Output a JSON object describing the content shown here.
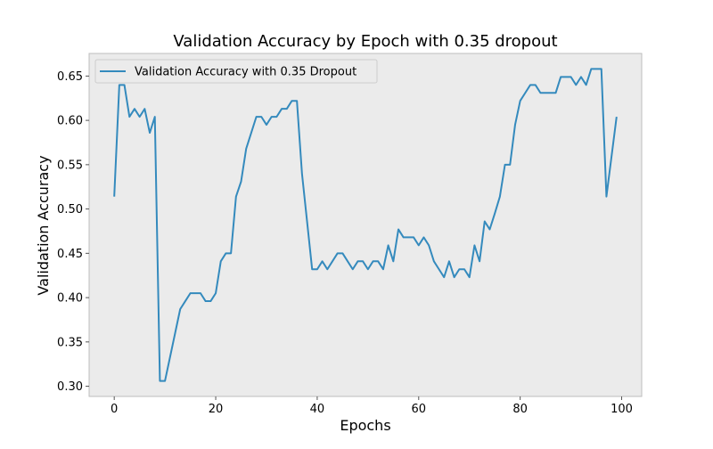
{
  "chart_data": {
    "type": "line",
    "title": "Validation Accuracy by Epoch with 0.35 dropout",
    "xlabel": "Epochs",
    "ylabel": "Validation Accuracy",
    "xlim": [
      -4.95,
      103.95
    ],
    "ylim": [
      0.2885,
      0.6755
    ],
    "xticks": [
      0,
      20,
      40,
      60,
      80,
      100
    ],
    "yticks": [
      0.3,
      0.35,
      0.4,
      0.45,
      0.5,
      0.55,
      0.6,
      0.65
    ],
    "grid": false,
    "legend_position": "top-left",
    "colors": {
      "background": "#ebebeb",
      "line": "#348abd"
    },
    "series": [
      {
        "name": "Validation Accuracy with 0.35 Dropout",
        "x": [
          0,
          1,
          2,
          3,
          4,
          5,
          6,
          7,
          8,
          9,
          10,
          11,
          12,
          13,
          14,
          15,
          16,
          17,
          18,
          19,
          20,
          21,
          22,
          23,
          24,
          25,
          26,
          27,
          28,
          29,
          30,
          31,
          32,
          33,
          34,
          35,
          36,
          37,
          38,
          39,
          40,
          41,
          42,
          43,
          44,
          45,
          46,
          47,
          48,
          49,
          50,
          51,
          52,
          53,
          54,
          55,
          56,
          57,
          58,
          59,
          60,
          61,
          62,
          63,
          64,
          65,
          66,
          67,
          68,
          69,
          70,
          71,
          72,
          73,
          74,
          75,
          76,
          77,
          78,
          79,
          80,
          81,
          82,
          83,
          84,
          85,
          86,
          87,
          88,
          89,
          90,
          91,
          92,
          93,
          94,
          95,
          96,
          97,
          98,
          99
        ],
        "values": [
          0.514,
          0.64,
          0.64,
          0.604,
          0.613,
          0.604,
          0.613,
          0.586,
          0.604,
          0.306,
          0.306,
          0.333,
          0.36,
          0.387,
          0.396,
          0.405,
          0.405,
          0.405,
          0.396,
          0.396,
          0.405,
          0.441,
          0.45,
          0.45,
          0.514,
          0.531,
          0.568,
          0.586,
          0.604,
          0.604,
          0.595,
          0.604,
          0.604,
          0.613,
          0.613,
          0.622,
          0.622,
          0.54,
          0.486,
          0.432,
          0.432,
          0.441,
          0.432,
          0.441,
          0.45,
          0.45,
          0.441,
          0.432,
          0.441,
          0.441,
          0.432,
          0.441,
          0.441,
          0.432,
          0.459,
          0.441,
          0.477,
          0.468,
          0.468,
          0.468,
          0.459,
          0.468,
          0.459,
          0.441,
          0.432,
          0.423,
          0.441,
          0.423,
          0.432,
          0.432,
          0.423,
          0.459,
          0.441,
          0.486,
          0.477,
          0.495,
          0.514,
          0.55,
          0.55,
          0.595,
          0.622,
          0.631,
          0.64,
          0.64,
          0.631,
          0.631,
          0.631,
          0.631,
          0.649,
          0.649,
          0.649,
          0.64,
          0.649,
          0.64,
          0.658,
          0.658,
          0.658,
          0.514,
          0.559,
          0.604
        ]
      }
    ]
  }
}
